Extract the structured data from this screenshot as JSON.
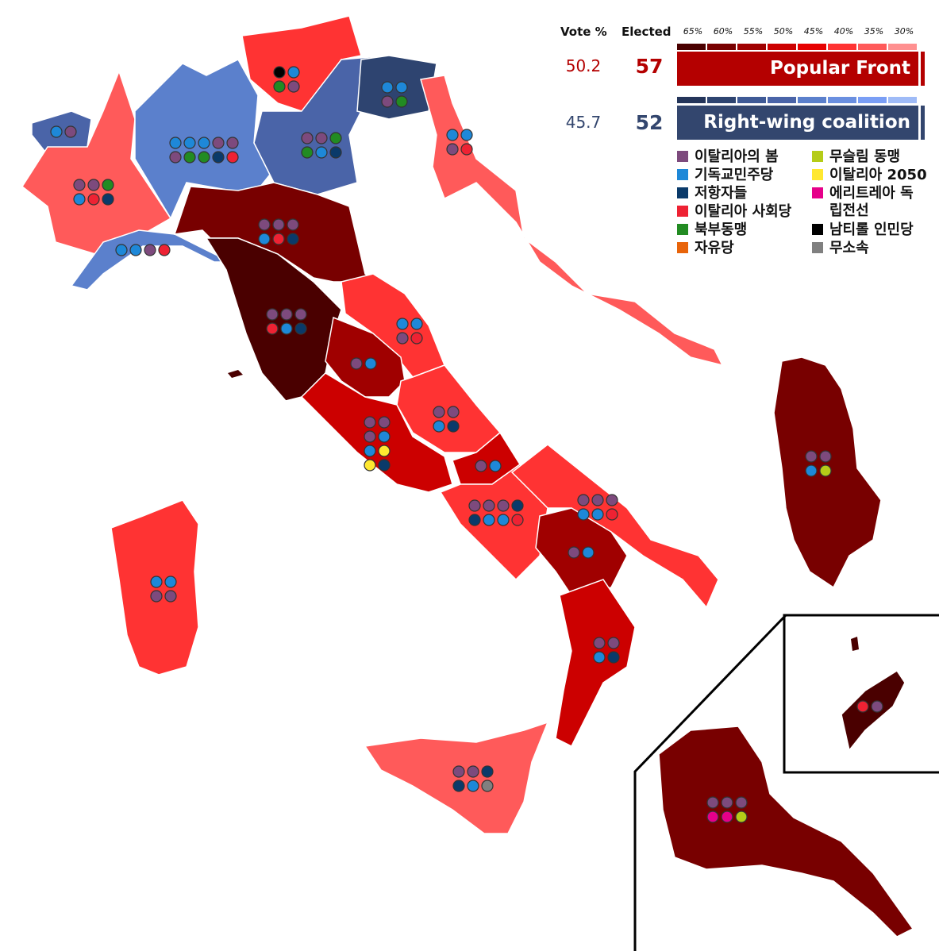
{
  "legend": {
    "vote_header": "Vote %",
    "elected_header": "Elected",
    "scale_ticks": [
      "65%",
      "60%",
      "55%",
      "50%",
      "45%",
      "40%",
      "35%",
      "30%"
    ],
    "red_scale": [
      "#4a0000",
      "#780000",
      "#a00000",
      "#cc0000",
      "#e60000",
      "#ff3333",
      "#ff5a5a",
      "#ff9090"
    ],
    "blue_scale": [
      "#24355a",
      "#2e4470",
      "#3f5a96",
      "#4a64a8",
      "#5b80cc",
      "#6a8fe0",
      "#7a9ef5",
      "#9fbbf7"
    ],
    "coalitions": [
      {
        "name": "Popular Front",
        "vote": "50.2",
        "elected": "57",
        "color": "#b40000"
      },
      {
        "name": "Right-wing coalition",
        "vote": "45.7",
        "elected": "52",
        "color": "#33466e"
      }
    ],
    "parties": [
      {
        "key": "purple",
        "label": "이탈리아의 봄",
        "color": "#7d4a7d"
      },
      {
        "key": "blue",
        "label": "기독교민주당",
        "color": "#1e88d8"
      },
      {
        "key": "navy",
        "label": "저항자들",
        "color": "#0a3a6a"
      },
      {
        "key": "red",
        "label": "이탈리아 사회당",
        "color": "#ee2233"
      },
      {
        "key": "green",
        "label": "북부동맹",
        "color": "#228b22"
      },
      {
        "key": "orange",
        "label": "자유당",
        "color": "#e8640a"
      },
      {
        "key": "lime",
        "label": "무슬림 동맹",
        "color": "#b5cc18"
      },
      {
        "key": "yellow",
        "label": "이탈리아 2050",
        "color": "#ffe830"
      },
      {
        "key": "magenta",
        "label": "에리트레아 독립전선",
        "color": "#e6008a"
      },
      {
        "key": "black",
        "label": "남티롤 인민당",
        "color": "#000000"
      },
      {
        "key": "gray",
        "label": "무소속",
        "color": "#808080"
      }
    ]
  },
  "regions": [
    {
      "fill": "#4a64a8",
      "seats": [
        [
          "blue",
          "purple"
        ]
      ]
    },
    {
      "fill": "#ff5a5a",
      "seats": [
        [
          "purple",
          "purple",
          "green"
        ],
        [
          "blue",
          "red",
          "navy"
        ]
      ]
    },
    {
      "fill": "#5b80cc",
      "seats": [
        [
          "blue",
          "blue",
          "blue",
          "purple",
          "purple"
        ],
        [
          "purple",
          "green",
          "green",
          "navy",
          "red"
        ]
      ]
    },
    {
      "fill": "#ff3333",
      "seats": [
        [
          "black",
          "blue"
        ],
        [
          "green",
          "purple"
        ]
      ]
    },
    {
      "fill": "#4a64a8",
      "seats": [
        [
          "purple",
          "purple",
          "green"
        ],
        [
          "green",
          "blue",
          "navy"
        ]
      ]
    },
    {
      "fill": "#2e4470",
      "seats": [
        [
          "blue",
          "blue"
        ],
        [
          "purple",
          "green"
        ]
      ]
    },
    {
      "fill": "#ff5a5a",
      "seats": [
        [
          "blue",
          "blue"
        ],
        [
          "purple",
          "red"
        ]
      ]
    },
    {
      "fill": "#5b80cc",
      "seats": [
        [
          "blue",
          "blue",
          "purple",
          "red"
        ]
      ]
    },
    {
      "fill": "#780000",
      "seats": [
        [
          "purple",
          "purple",
          "purple"
        ],
        [
          "blue",
          "red",
          "navy"
        ]
      ]
    },
    {
      "fill": "#4a0000",
      "seats": [
        [
          "purple",
          "purple",
          "purple"
        ],
        [
          "red",
          "blue",
          "navy"
        ]
      ]
    },
    {
      "fill": "#ff3333",
      "seats": [
        [
          "blue",
          "blue"
        ],
        [
          "purple",
          "red"
        ]
      ]
    },
    {
      "fill": "#a00000",
      "seats": [
        [
          "purple",
          "blue"
        ]
      ]
    },
    {
      "fill": "#ff3333",
      "seats": [
        [
          "purple",
          "purple"
        ],
        [
          "blue",
          "navy"
        ]
      ]
    },
    {
      "fill": "#cc0000",
      "seats": [
        [
          "purple",
          "purple"
        ],
        [
          "purple",
          "blue"
        ],
        [
          "blue",
          "yellow"
        ],
        [
          "yellow",
          "navy"
        ]
      ]
    },
    {
      "fill": "#cc0000",
      "seats": [
        [
          "purple",
          "blue"
        ]
      ]
    },
    {
      "fill": "#ff3333",
      "seats": [
        [
          "purple",
          "purple",
          "purple",
          "navy"
        ],
        [
          "navy",
          "blue",
          "blue",
          "red"
        ]
      ]
    },
    {
      "fill": "#ff3333",
      "seats": [
        [
          "purple",
          "purple",
          "purple"
        ],
        [
          "blue",
          "blue",
          "red"
        ]
      ]
    },
    {
      "fill": "#a00000",
      "seats": [
        [
          "purple",
          "blue"
        ]
      ]
    },
    {
      "fill": "#cc0000",
      "seats": [
        [
          "purple",
          "purple"
        ],
        [
          "blue",
          "navy"
        ]
      ]
    },
    {
      "fill": "#ff5a5a",
      "seats": [
        [
          "purple",
          "purple",
          "navy"
        ],
        [
          "navy",
          "blue",
          "gray"
        ]
      ]
    },
    {
      "fill": "#ff3333",
      "seats": [
        [
          "blue",
          "blue"
        ],
        [
          "purple",
          "purple"
        ]
      ]
    },
    {
      "fill": "#780000",
      "seats": [
        [
          "purple",
          "purple"
        ],
        [
          "blue",
          "lime"
        ]
      ]
    },
    {
      "fill": "#4a0000",
      "seats": [
        [
          "red",
          "purple"
        ]
      ]
    },
    {
      "fill": "#780000",
      "seats": [
        [
          "purple",
          "purple",
          "purple"
        ],
        [
          "magenta",
          "magenta",
          "lime"
        ]
      ]
    }
  ]
}
